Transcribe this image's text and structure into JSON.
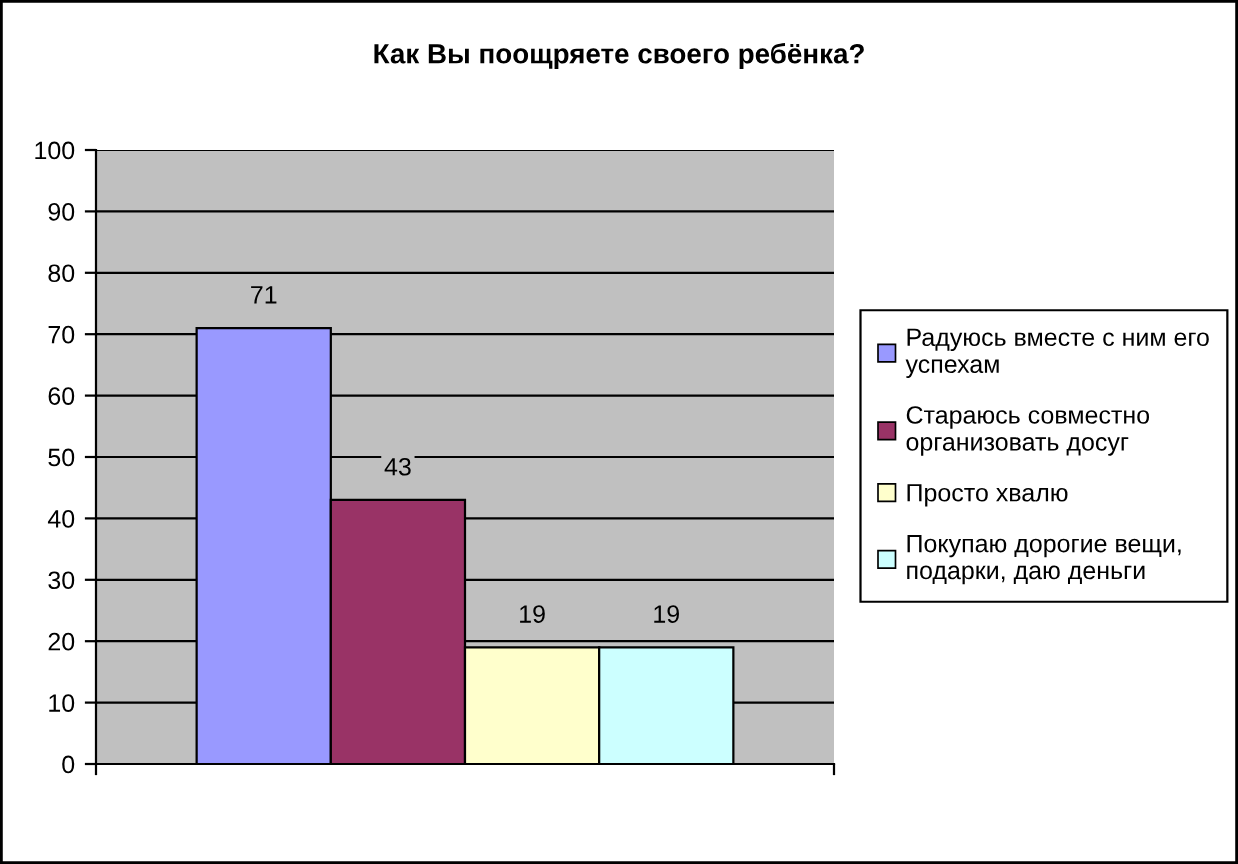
{
  "chart_data": {
    "type": "bar",
    "title": "Как Вы поощряете своего ребёнка?",
    "categories": [
      null
    ],
    "series": [
      {
        "name": "Радуюсь вместе с ним его успехам",
        "color": "#9999ff",
        "values": [
          71
        ]
      },
      {
        "name": "Стараюсь совместно организовать досуг",
        "color": "#993366",
        "values": [
          43
        ]
      },
      {
        "name": "Просто хвалю",
        "color": "#ffffcc",
        "values": [
          19
        ]
      },
      {
        "name": "Покупаю дорогие вещи, подарки, даю деньги",
        "color": "#ccffff",
        "values": [
          19
        ]
      }
    ],
    "ylim": [
      0,
      100
    ],
    "yticks": [
      0,
      10,
      20,
      30,
      40,
      50,
      60,
      70,
      80,
      90,
      100
    ],
    "grid": "y",
    "legend": "right",
    "data_labels": true
  }
}
